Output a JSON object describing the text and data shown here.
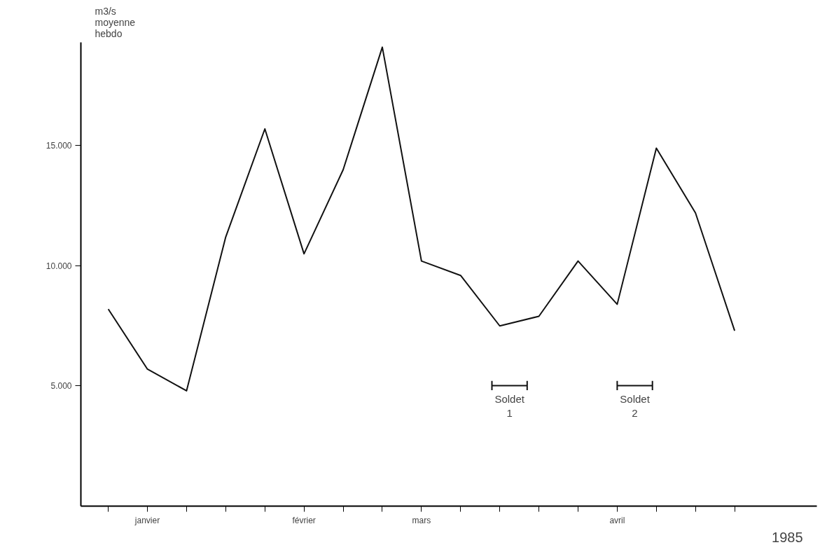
{
  "chart_data": {
    "type": "line",
    "ylabel": "m3/s\nmoyenne\nhebdo",
    "categories": [
      null,
      "janvier",
      null,
      null,
      null,
      "février",
      null,
      null,
      "mars",
      null,
      null,
      null,
      null,
      "avril",
      null,
      null,
      null
    ],
    "series": [
      {
        "color": "#111111",
        "values": [
          8200,
          5700,
          4800,
          11200,
          15700,
          10500,
          14000,
          19100,
          10200,
          9600,
          7500,
          7900,
          10200,
          8400,
          14900,
          12200,
          7300
        ]
      }
    ],
    "ylim": [
      0,
      19300
    ],
    "yticks": [
      {
        "value": 5000,
        "label": "5.000"
      },
      {
        "value": 10000,
        "label": "10.000"
      },
      {
        "value": 15000,
        "label": "15.000"
      }
    ],
    "annotations": [
      "Soldet\n1",
      "Soldet\n2",
      "1985"
    ],
    "grid": false,
    "marker": "none",
    "line_style": "solid"
  }
}
